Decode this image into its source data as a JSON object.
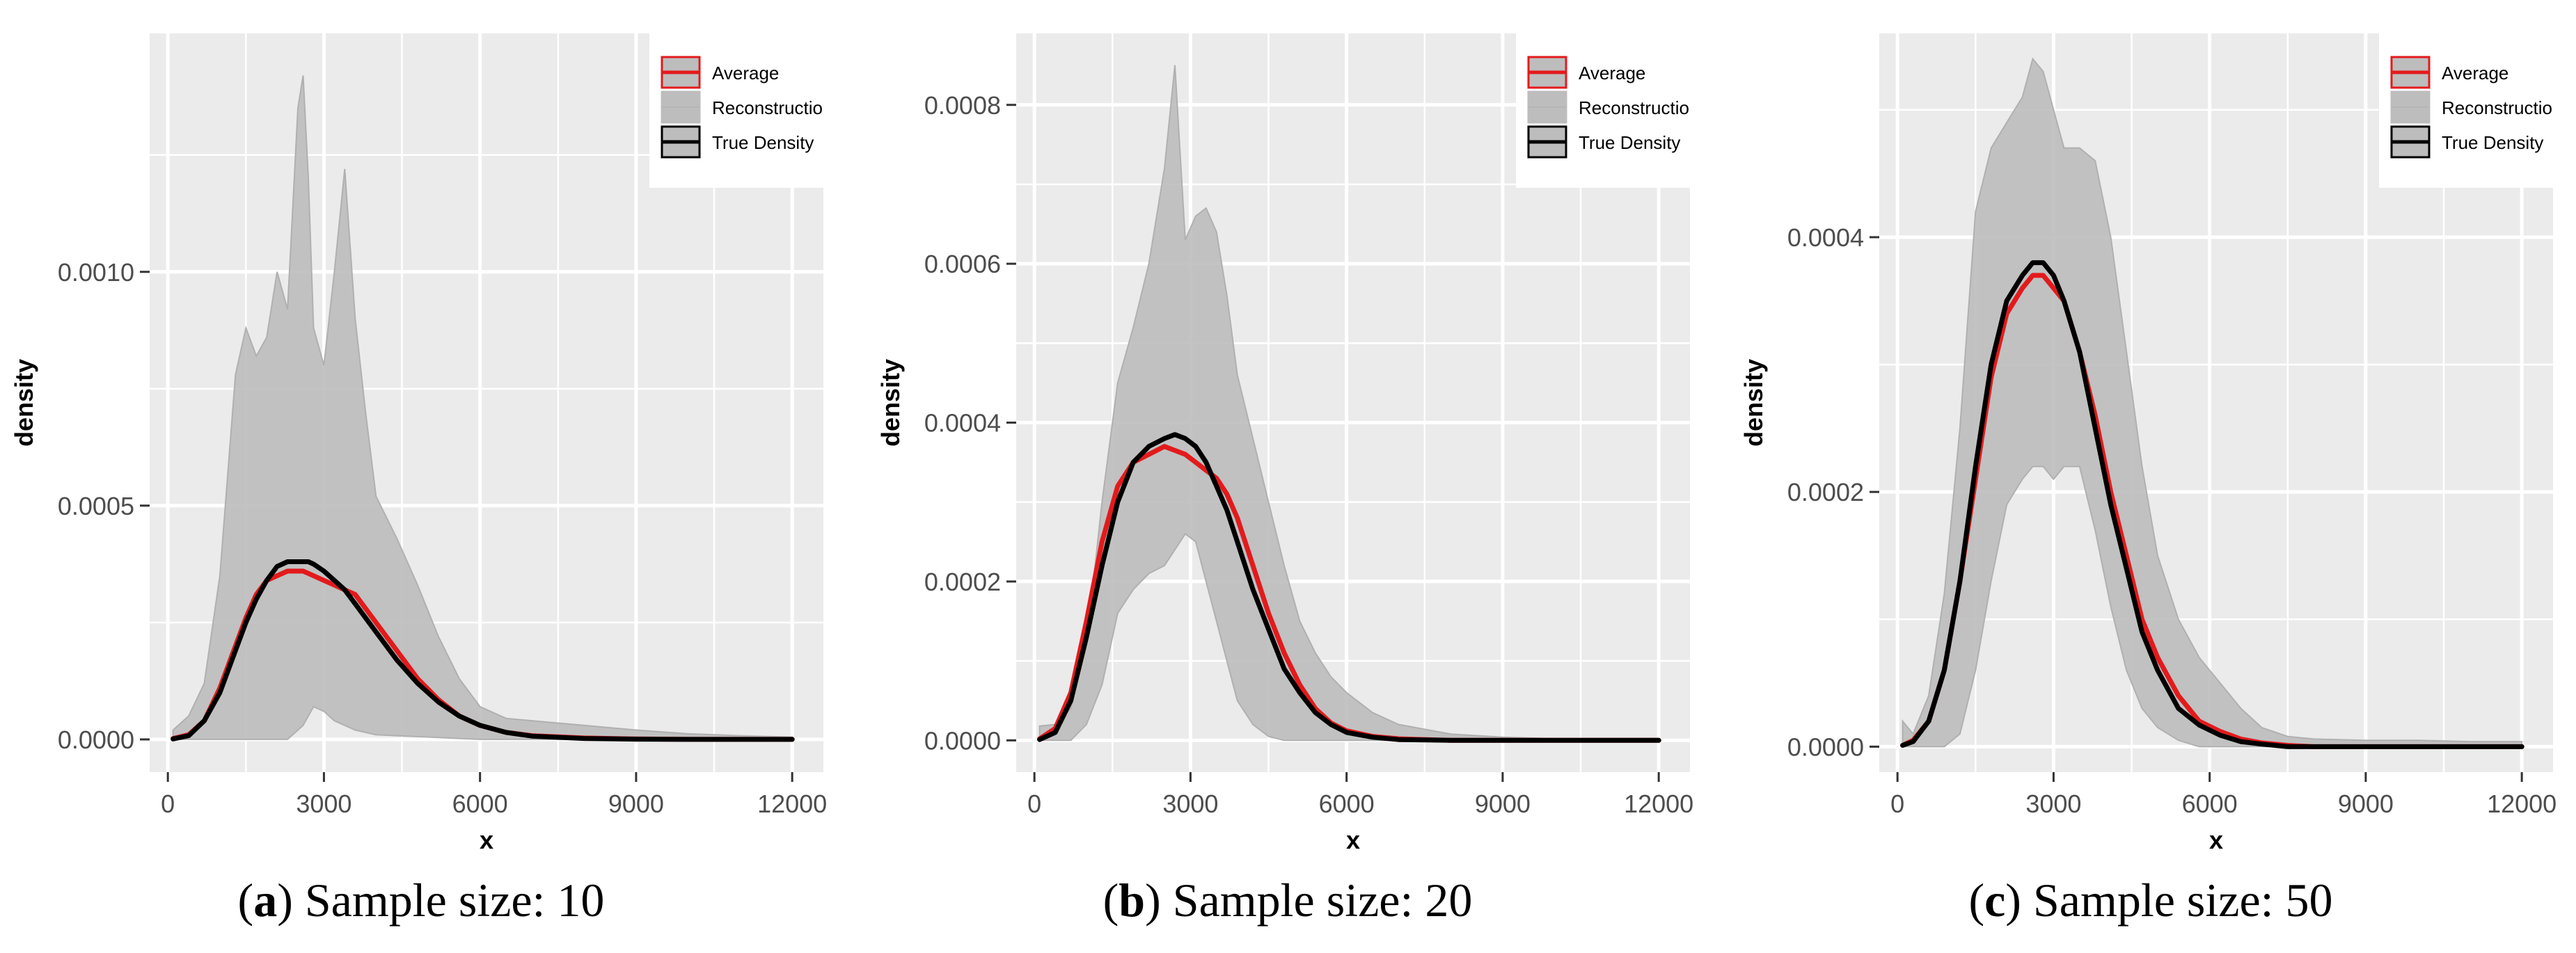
{
  "colors": {
    "panel_bg": "#ebebeb",
    "grid": "#ffffff",
    "band": "#bdbdbd",
    "average": "#e31a1c",
    "true_density": "#000000"
  },
  "legend": {
    "average": "Average",
    "reconstruction": "Reconstructior",
    "true_density": "True Density",
    "placement": "top-right"
  },
  "chart_data": [
    {
      "type": "area",
      "caption_letter": "a",
      "caption_text": ") Sample size: 10",
      "xlabel": "x",
      "ylabel": "density",
      "xlim": [
        -350,
        12600
      ],
      "ylim": [
        -7e-05,
        0.00151
      ],
      "xticks": [
        0,
        3000,
        6000,
        9000,
        12000
      ],
      "xtick_labels": [
        "0",
        "3000",
        "6000",
        "9000",
        "12000"
      ],
      "yticks": [
        0,
        0.0005,
        0.001
      ],
      "ytick_labels": [
        "0.0000",
        "0.0005",
        "0.0010"
      ],
      "x": [
        100,
        400,
        700,
        1000,
        1300,
        1500,
        1700,
        1900,
        2100,
        2300,
        2500,
        2600,
        2700,
        2800,
        3000,
        3200,
        3400,
        3600,
        3800,
        4000,
        4400,
        4800,
        5200,
        5600,
        6000,
        6500,
        7000,
        8000,
        9000,
        10000,
        11000,
        12000
      ],
      "series": [
        {
          "name": "Reconstructior",
          "role": "band_upper",
          "values": [
            2e-05,
            5e-05,
            0.00012,
            0.00035,
            0.00078,
            0.00088,
            0.00082,
            0.00086,
            0.001,
            0.00092,
            0.00135,
            0.00142,
            0.0012,
            0.00088,
            0.0008,
            0.001,
            0.00122,
            0.0009,
            0.0007,
            0.00052,
            0.00043,
            0.00033,
            0.00022,
            0.00013,
            7e-05,
            4.5e-05,
            4e-05,
            3e-05,
            2e-05,
            1.2e-05,
            8e-06,
            5e-06
          ]
        },
        {
          "name": "Reconstructior",
          "role": "band_lower",
          "values": [
            0,
            0,
            0,
            0,
            0,
            0,
            0,
            0,
            0,
            0,
            2e-05,
            3e-05,
            5e-05,
            7e-05,
            6e-05,
            4e-05,
            3e-05,
            2e-05,
            1.5e-05,
            1e-05,
            8e-06,
            6e-06,
            4e-06,
            2e-06,
            0,
            0,
            0,
            0,
            0,
            0,
            0,
            0
          ]
        },
        {
          "name": "Average",
          "values": [
            2e-06,
            1e-05,
            4e-05,
            0.00011,
            0.0002,
            0.00026,
            0.00031,
            0.00034,
            0.00035,
            0.00036,
            0.00036,
            0.00036,
            0.000355,
            0.00035,
            0.00034,
            0.00033,
            0.00032,
            0.00031,
            0.00028,
            0.00025,
            0.00019,
            0.00013,
            8.5e-05,
            5e-05,
            3e-05,
            1.5e-05,
            8e-06,
            3e-06,
            1e-06,
            0,
            0,
            0
          ]
        },
        {
          "name": "True Density",
          "values": [
            1e-06,
            8e-06,
            4e-05,
            0.0001,
            0.00019,
            0.00025,
            0.0003,
            0.00034,
            0.00037,
            0.00038,
            0.00038,
            0.00038,
            0.00038,
            0.000375,
            0.00036,
            0.00034,
            0.00032,
            0.00029,
            0.00026,
            0.00023,
            0.00017,
            0.00012,
            8e-05,
            5e-05,
            3e-05,
            1.5e-05,
            7e-06,
            2e-06,
            5e-07,
            0,
            0,
            0
          ]
        }
      ]
    },
    {
      "type": "area",
      "caption_letter": "b",
      "caption_text": ") Sample size: 20",
      "xlabel": "x",
      "ylabel": "density",
      "xlim": [
        -350,
        12600
      ],
      "ylim": [
        -4e-05,
        0.00089
      ],
      "xticks": [
        0,
        3000,
        6000,
        9000,
        12000
      ],
      "xtick_labels": [
        "0",
        "3000",
        "6000",
        "9000",
        "12000"
      ],
      "yticks": [
        0,
        0.0002,
        0.0004,
        0.0006,
        0.0008
      ],
      "ytick_labels": [
        "0.0000",
        "0.0002",
        "0.0004",
        "0.0006",
        "0.0008"
      ],
      "x": [
        100,
        400,
        700,
        1000,
        1300,
        1600,
        1900,
        2200,
        2500,
        2700,
        2900,
        3100,
        3300,
        3500,
        3700,
        3900,
        4200,
        4500,
        4800,
        5100,
        5400,
        5700,
        6000,
        6500,
        7000,
        8000,
        9000,
        10000,
        11000,
        12000
      ],
      "series": [
        {
          "name": "Reconstructior",
          "role": "band_upper",
          "values": [
            1.8e-05,
            2e-05,
            4e-05,
            0.00012,
            0.0003,
            0.00045,
            0.00052,
            0.0006,
            0.00072,
            0.00085,
            0.00063,
            0.00066,
            0.00067,
            0.00064,
            0.00056,
            0.00046,
            0.00038,
            0.0003,
            0.00022,
            0.00015,
            0.00011,
            8e-05,
            6e-05,
            3.5e-05,
            2e-05,
            8e-06,
            4e-06,
            2e-06,
            1e-06,
            0
          ]
        },
        {
          "name": "Reconstructior",
          "role": "band_lower",
          "values": [
            0,
            0,
            0,
            2e-05,
            7e-05,
            0.00016,
            0.00019,
            0.00021,
            0.00022,
            0.00024,
            0.00026,
            0.00025,
            0.0002,
            0.00015,
            0.0001,
            5e-05,
            2e-05,
            5e-06,
            0,
            0,
            0,
            0,
            0,
            0,
            0,
            0,
            0,
            0,
            0,
            0
          ]
        },
        {
          "name": "Average",
          "values": [
            2e-06,
            1.5e-05,
            6e-05,
            0.00015,
            0.00025,
            0.00032,
            0.00035,
            0.00036,
            0.00037,
            0.000365,
            0.00036,
            0.00035,
            0.00034,
            0.00033,
            0.00031,
            0.00028,
            0.00022,
            0.00016,
            0.00011,
            7e-05,
            4e-05,
            2.2e-05,
            1.2e-05,
            5e-06,
            2e-06,
            0,
            0,
            0,
            0,
            0
          ]
        },
        {
          "name": "True Density",
          "values": [
            1e-06,
            1e-05,
            5e-05,
            0.00013,
            0.00022,
            0.0003,
            0.00035,
            0.00037,
            0.00038,
            0.000385,
            0.00038,
            0.00037,
            0.00035,
            0.00032,
            0.00029,
            0.00025,
            0.00019,
            0.00014,
            9e-05,
            6e-05,
            3.5e-05,
            2e-05,
            1e-05,
            4e-06,
            1e-06,
            0,
            0,
            0,
            0,
            0
          ]
        }
      ]
    },
    {
      "type": "area",
      "caption_letter": "c",
      "caption_text": ") Sample size: 50",
      "xlabel": "x",
      "ylabel": "density",
      "xlim": [
        -350,
        12600
      ],
      "ylim": [
        -2e-05,
        0.00056
      ],
      "xticks": [
        0,
        3000,
        6000,
        9000,
        12000
      ],
      "xtick_labels": [
        "0",
        "3000",
        "6000",
        "9000",
        "12000"
      ],
      "yticks": [
        0,
        0.0002,
        0.0004
      ],
      "ytick_labels": [
        "0.0000",
        "0.0002",
        "0.0004"
      ],
      "x": [
        100,
        300,
        600,
        900,
        1200,
        1500,
        1800,
        2100,
        2400,
        2600,
        2800,
        3000,
        3200,
        3500,
        3800,
        4100,
        4400,
        4700,
        5000,
        5400,
        5800,
        6200,
        6600,
        7000,
        7500,
        8000,
        9000,
        10000,
        11000,
        12000
      ],
      "series": [
        {
          "name": "Reconstructior",
          "role": "band_upper",
          "values": [
            2e-05,
            1e-05,
            4e-05,
            0.00012,
            0.00025,
            0.00042,
            0.00047,
            0.00049,
            0.00051,
            0.00054,
            0.00053,
            0.0005,
            0.00047,
            0.00047,
            0.00046,
            0.0004,
            0.00031,
            0.00022,
            0.00015,
            0.0001,
            7e-05,
            5e-05,
            3e-05,
            1.5e-05,
            8e-06,
            6e-06,
            5e-06,
            5e-06,
            4e-06,
            4e-06
          ]
        },
        {
          "name": "Reconstructior",
          "role": "band_lower",
          "values": [
            0,
            0,
            0,
            0,
            1e-05,
            6e-05,
            0.00013,
            0.00019,
            0.00021,
            0.00022,
            0.00022,
            0.00021,
            0.00022,
            0.00022,
            0.00017,
            0.00011,
            6e-05,
            3e-05,
            1.5e-05,
            5e-06,
            0,
            0,
            0,
            0,
            0,
            0,
            0,
            0,
            0,
            0
          ]
        },
        {
          "name": "Average",
          "values": [
            1e-06,
            5e-06,
            2e-05,
            6e-05,
            0.00013,
            0.00021,
            0.00029,
            0.00034,
            0.00036,
            0.00037,
            0.00037,
            0.00036,
            0.00035,
            0.00031,
            0.00026,
            0.0002,
            0.00015,
            0.0001,
            7e-05,
            4e-05,
            2e-05,
            1.2e-05,
            6e-06,
            3e-06,
            1e-06,
            0,
            0,
            0,
            0,
            0
          ]
        },
        {
          "name": "True Density",
          "values": [
            1e-06,
            4e-06,
            2e-05,
            6e-05,
            0.00013,
            0.00022,
            0.0003,
            0.00035,
            0.00037,
            0.00038,
            0.00038,
            0.00037,
            0.00035,
            0.00031,
            0.00025,
            0.00019,
            0.00014,
            9e-05,
            6e-05,
            3e-05,
            1.7e-05,
            9e-06,
            4e-06,
            2e-06,
            0,
            0,
            0,
            0,
            0,
            0
          ]
        }
      ]
    }
  ]
}
